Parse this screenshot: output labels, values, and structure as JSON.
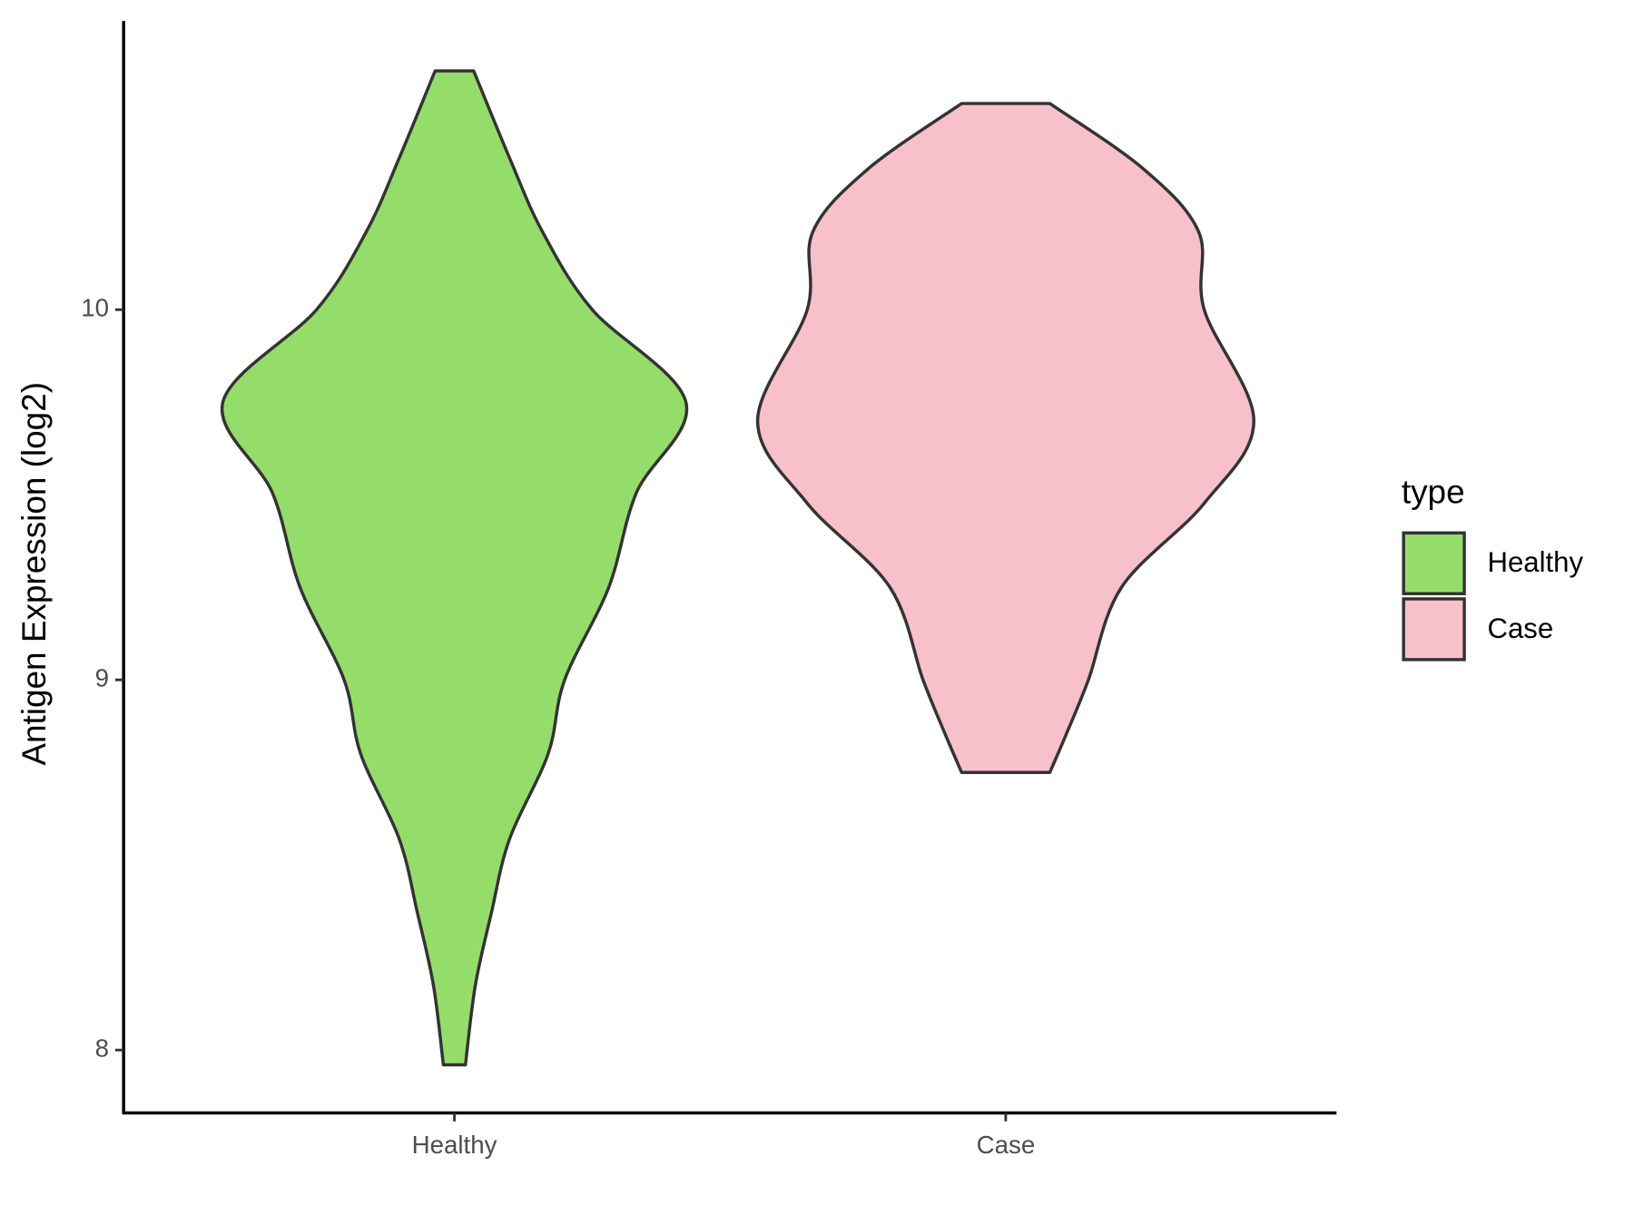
{
  "chart_data": {
    "type": "violin",
    "y_label": "Antigen Expression (log2)",
    "categories": [
      "Healthy",
      "Case"
    ],
    "series": [
      {
        "name": "Healthy",
        "color": "#95dd6b",
        "y": [
          10.645,
          10.41,
          10.21,
          10.0,
          9.75,
          9.505,
          9.25,
          9.0,
          8.8,
          8.57,
          8.37,
          8.175,
          7.96
        ],
        "widths": [
          0.035,
          0.1,
          0.16,
          0.25,
          0.42,
          0.33,
          0.28,
          0.2,
          0.17,
          0.1,
          0.067,
          0.038,
          0.02
        ]
      },
      {
        "name": "Case",
        "color": "#f7c0ca",
        "y": [
          10.557,
          10.38,
          10.21,
          10.0,
          9.7,
          9.477,
          9.25,
          9.0,
          8.854,
          8.75
        ],
        "widths": [
          0.08,
          0.25,
          0.35,
          0.36,
          0.45,
          0.36,
          0.21,
          0.15,
          0.11,
          0.08
        ]
      }
    ],
    "ylim": [
      7.83,
      10.78
    ],
    "yticks": [
      8,
      9,
      10
    ],
    "legend_title": "type",
    "legend": "right"
  }
}
